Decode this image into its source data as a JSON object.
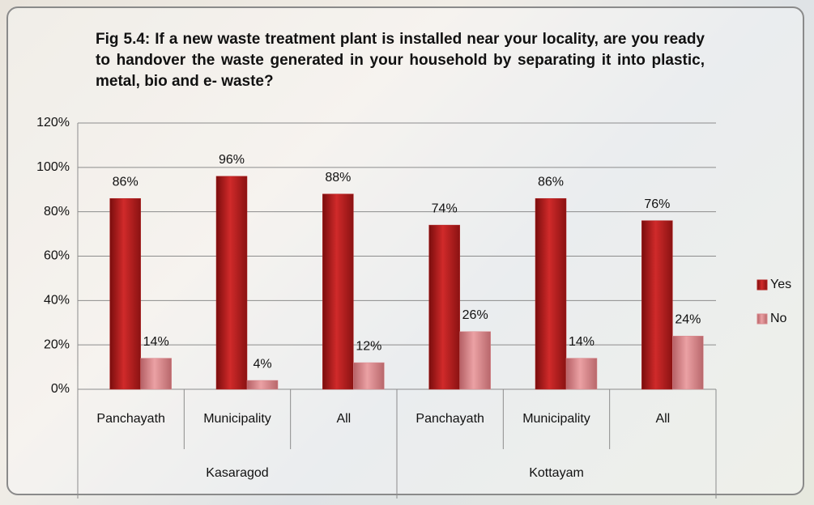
{
  "chart_data": {
    "type": "bar",
    "title": "Fig 5.4:  If a new waste treatment plant is installed near your locality, are you ready to handover the waste generated in your household by separating it into plastic, metal, bio and e- waste?",
    "categories": [
      "Panchayath",
      "Municipality",
      "All",
      "Panchayath",
      "Municipality",
      "All"
    ],
    "groups": [
      "Kasaragod",
      "Kottayam"
    ],
    "series": [
      {
        "name": "Yes",
        "color": "#b22222",
        "values": [
          86,
          96,
          88,
          74,
          86,
          76
        ],
        "value_labels": [
          "86%",
          "96%",
          "88%",
          "74%",
          "86%",
          "76%"
        ]
      },
      {
        "name": "No",
        "color": "#d9868a",
        "values": [
          14,
          4,
          12,
          26,
          14,
          24
        ],
        "value_labels": [
          "14%",
          "4%",
          "12%",
          "26%",
          "14%",
          "24%"
        ]
      }
    ],
    "ylim": [
      0,
      120
    ],
    "yticks": [
      {
        "value": 0,
        "label": "0%"
      },
      {
        "value": 20,
        "label": "20%"
      },
      {
        "value": 40,
        "label": "40%"
      },
      {
        "value": 60,
        "label": "60%"
      },
      {
        "value": 80,
        "label": "80%"
      },
      {
        "value": 100,
        "label": "100%"
      },
      {
        "value": 120,
        "label": "120%"
      }
    ],
    "grid": true,
    "legend": "right"
  }
}
